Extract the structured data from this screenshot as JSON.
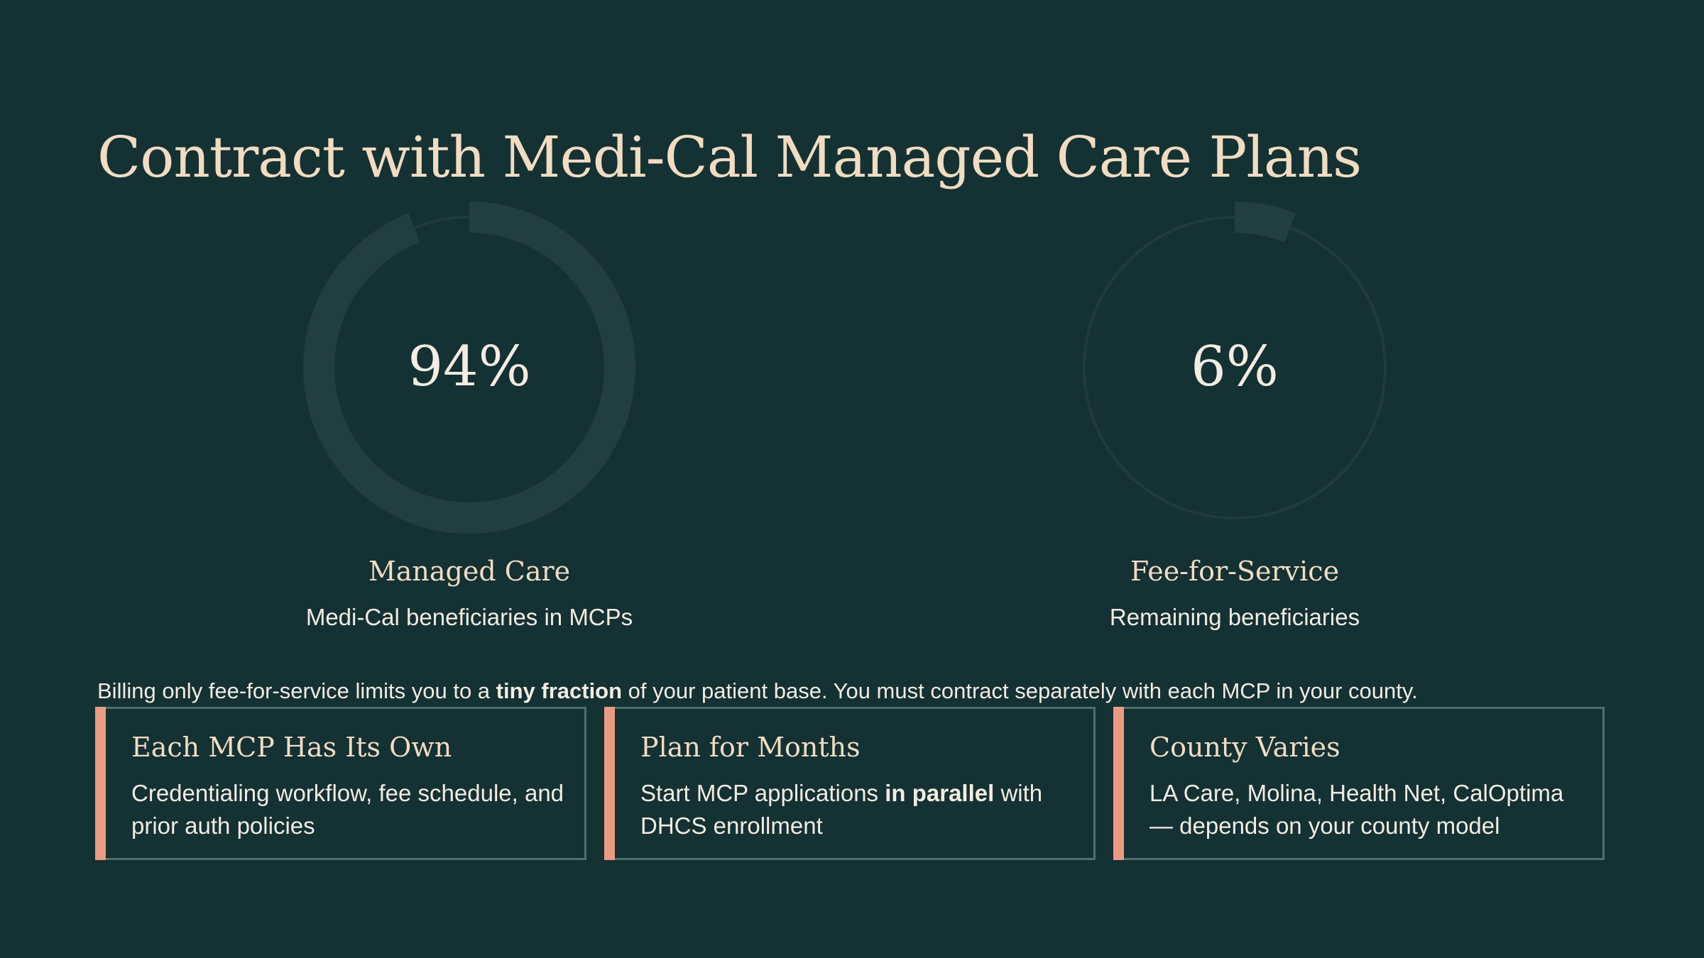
{
  "title": "Contract with Medi-Cal Managed Care Plans",
  "colors": {
    "background": "#143133",
    "ring_track": "#213f40",
    "ring_fill": "#223f40",
    "accent": "#ec9b83",
    "heading": "#f1dcc2"
  },
  "stats": [
    {
      "value_text": "94%",
      "fraction": 0.94,
      "label": "Managed Care",
      "sub": "Medi-Cal beneficiaries in MCPs"
    },
    {
      "value_text": "6%",
      "fraction": 0.06,
      "label": "Fee-for-Service",
      "sub": "Remaining beneficiaries"
    }
  ],
  "note": {
    "before": "Billing only fee-for-service limits you to a ",
    "bold": "tiny fraction",
    "after": " of your patient base. You must contract separately with each MCP in your county."
  },
  "cards": [
    {
      "title": "Each MCP Has Its Own",
      "body_before": "Credentialing workflow, fee schedule, and prior auth policies",
      "body_bold": "",
      "body_after": ""
    },
    {
      "title": "Plan for Months",
      "body_before": "Start MCP applications ",
      "body_bold": "in parallel",
      "body_after": " with DHCS enrollment"
    },
    {
      "title": "County Varies",
      "body_before": "LA Care, Molina, Health Net, CalOptima — depends on your county model",
      "body_bold": "",
      "body_after": ""
    }
  ]
}
